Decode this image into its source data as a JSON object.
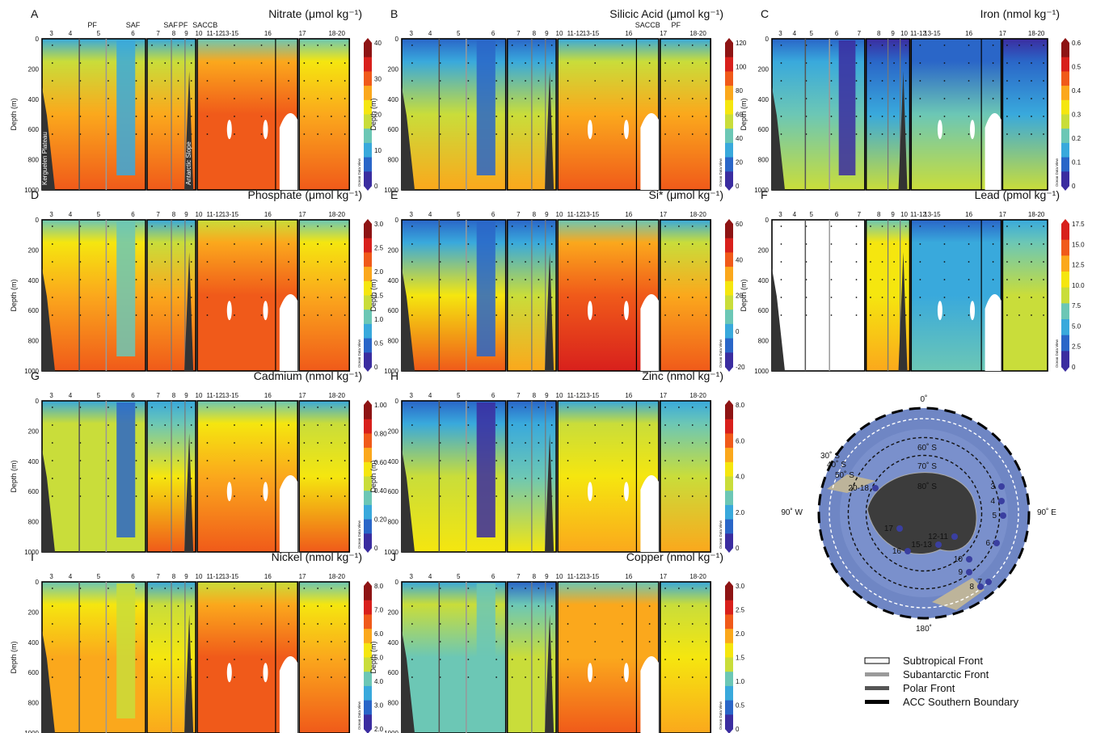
{
  "figure": {
    "depth_axis_label": "Depth (m)",
    "depth_ticks": [
      0,
      200,
      400,
      600,
      800,
      1000
    ],
    "station_labels": [
      {
        "text": "3"
      },
      {
        "text": "4"
      },
      {
        "text": "5"
      },
      {
        "text": "6"
      },
      {
        "text": "7"
      },
      {
        "text": "8"
      },
      {
        "text": "9"
      },
      {
        "text": "10"
      },
      {
        "text": "11-12"
      },
      {
        "text": "13-15"
      },
      {
        "text": "16"
      },
      {
        "text": "17"
      },
      {
        "text": "18-20"
      }
    ],
    "front_labels_top": [
      "PF",
      "SAF",
      "SAF",
      "PF",
      "SACCB",
      "SACCB",
      "PF"
    ],
    "topo_labels": [
      "Kerguelen Plateau",
      "Antarctic Slope"
    ],
    "watermark": "Ocean Data View"
  },
  "chart_data": [
    {
      "type": "heatmap",
      "panel": "A",
      "title": "Nitrate (μmol kg⁻¹)",
      "colorbar_ticks": [
        "40",
        "30",
        "20",
        "10",
        "0"
      ],
      "ylim": [
        1000,
        0
      ]
    },
    {
      "type": "heatmap",
      "panel": "B",
      "title": "Silicic Acid (μmol kg⁻¹)",
      "colorbar_ticks": [
        "120",
        "100",
        "80",
        "60",
        "40",
        "20",
        "0"
      ],
      "ylim": [
        1000,
        0
      ]
    },
    {
      "type": "heatmap",
      "panel": "C",
      "title": "Iron (nmol kg⁻¹)",
      "colorbar_ticks": [
        "0.6",
        "0.5",
        "0.4",
        "0.3",
        "0.2",
        "0.1",
        "0"
      ],
      "ylim": [
        1000,
        0
      ]
    },
    {
      "type": "heatmap",
      "panel": "D",
      "title": "Phosphate (μmol kg⁻¹)",
      "colorbar_ticks": [
        "3.0",
        "2.5",
        "2.0",
        "1.5",
        "1.0",
        "0.5",
        "0"
      ],
      "ylim": [
        1000,
        0
      ]
    },
    {
      "type": "heatmap",
      "panel": "E",
      "title": "Si* (μmol kg⁻¹)",
      "colorbar_ticks": [
        "60",
        "40",
        "20",
        "0",
        "-20"
      ],
      "ylim": [
        1000,
        0
      ]
    },
    {
      "type": "heatmap",
      "panel": "F",
      "title": "Lead (pmol kg⁻¹)",
      "colorbar_ticks": [
        "17.5",
        "15.0",
        "12.5",
        "10.0",
        "7.5",
        "5.0",
        "2.5",
        "0"
      ],
      "ylim": [
        1000,
        0
      ]
    },
    {
      "type": "heatmap",
      "panel": "G",
      "title": "Cadmium (nmol kg⁻¹)",
      "colorbar_ticks": [
        "1.00",
        "0.80",
        "0.60",
        "0.40",
        "0.20",
        "0"
      ],
      "ylim": [
        1000,
        0
      ]
    },
    {
      "type": "heatmap",
      "panel": "H",
      "title": "Zinc (nmol kg⁻¹)",
      "colorbar_ticks": [
        "8.0",
        "6.0",
        "4.0",
        "2.0",
        "0"
      ],
      "ylim": [
        1000,
        0
      ]
    },
    {
      "type": "heatmap",
      "panel": "I",
      "title": "Nickel (nmol kg⁻¹)",
      "colorbar_ticks": [
        "8.0",
        "7.0",
        "6.0",
        "5.0",
        "4.0",
        "3.0",
        "2.0"
      ],
      "ylim": [
        1000,
        0
      ]
    },
    {
      "type": "heatmap",
      "panel": "J",
      "title": "Copper (nmol kg⁻¹)",
      "colorbar_ticks": [
        "3.0",
        "2.5",
        "2.0",
        "1.5",
        "1.0",
        "0.5",
        "0"
      ],
      "ylim": [
        1000,
        0
      ]
    }
  ],
  "map": {
    "top_label": "0˚",
    "bottom_label": "180˚",
    "left_label": "90˚ W",
    "right_label": "90˚ E",
    "lat_labels": [
      "30˚ S",
      "40˚ S",
      "50˚ S",
      "60˚ S",
      "70˚ S",
      "80˚ S"
    ],
    "station_labels": [
      "3",
      "4",
      "5",
      "6",
      "7",
      "8",
      "9",
      "10",
      "12-11",
      "15-13",
      "16",
      "17",
      "20-18"
    ]
  },
  "legend": [
    {
      "label": "Subtropical Front",
      "color": "#ffffff"
    },
    {
      "label": "Subantarctic Front",
      "color": "#9a9a9a"
    },
    {
      "label": "Polar Front",
      "color": "#555555"
    },
    {
      "label": "ACC Southern Boundary",
      "color": "#000000"
    }
  ]
}
